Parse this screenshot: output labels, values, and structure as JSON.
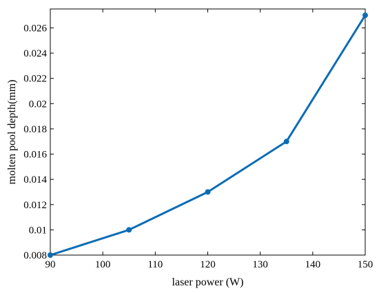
{
  "chart_data": {
    "type": "line",
    "title": "",
    "xlabel": "laser power (W)",
    "ylabel": "molten pool depth(mm)",
    "x": [
      90,
      105,
      120,
      135,
      150
    ],
    "series": [
      {
        "values": [
          0.008,
          0.01,
          0.013,
          0.017,
          0.027
        ]
      }
    ],
    "xlim": [
      90,
      150
    ],
    "ylim": [
      0.008,
      0.0275
    ],
    "xticks": [
      90,
      100,
      110,
      120,
      130,
      140,
      150
    ],
    "xtick_labels": [
      "90",
      "100",
      "110",
      "120",
      "130",
      "140",
      "150"
    ],
    "yticks": [
      0.008,
      0.01,
      0.012,
      0.014,
      0.016,
      0.018,
      0.02,
      0.022,
      0.024,
      0.026
    ],
    "ytick_labels": [
      "0.008",
      "0.01",
      "0.012",
      "0.014",
      "0.016",
      "0.018",
      "0.02",
      "0.022",
      "0.024",
      "0.026"
    ],
    "grid": false,
    "legend": "none",
    "colors": {
      "line": "#0b6cb5",
      "axis": "#000000"
    }
  }
}
